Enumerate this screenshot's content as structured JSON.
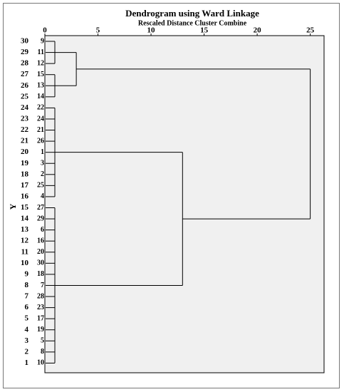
{
  "chart_data": {
    "type": "dendrogram",
    "title": "Dendrogram using Ward Linkage",
    "subtitle": "Rescaled Distance Cluster Combine",
    "ylabel": "Y",
    "xlim": [
      0,
      26.3
    ],
    "xticks": [
      0,
      5,
      10,
      15,
      20,
      25
    ],
    "row_labels": [
      "30",
      "29",
      "28",
      "27",
      "26",
      "25",
      "24",
      "23",
      "22",
      "21",
      "20",
      "19",
      "18",
      "17",
      "16",
      "15",
      "14",
      "13",
      "12",
      "11",
      "10",
      "9",
      "8",
      "7",
      "6",
      "5",
      "4",
      "3",
      "2",
      "1"
    ],
    "leaves": [
      "9",
      "11",
      "12",
      "15",
      "13",
      "14",
      "22",
      "24",
      "21",
      "26",
      "1",
      "3",
      "2",
      "25",
      "4",
      "27",
      "29",
      "6",
      "16",
      "20",
      "30",
      "18",
      "7",
      "28",
      "23",
      "17",
      "19",
      "5",
      "8",
      "10"
    ],
    "merges": [
      {
        "members": [
          0,
          1,
          2
        ],
        "height": 0.94
      },
      {
        "members": [
          3,
          4,
          5
        ],
        "height": 0.94
      },
      {
        "members": [
          30,
          31
        ],
        "height": 2.96
      },
      {
        "members": [
          6,
          7,
          8,
          9,
          10,
          11,
          12,
          13,
          14
        ],
        "height": 0.94
      },
      {
        "members": [
          15,
          16,
          17,
          18,
          19,
          20,
          21,
          22,
          23,
          24,
          25,
          26,
          27,
          28,
          29
        ],
        "height": 0.94
      },
      {
        "members": [
          33,
          34
        ],
        "height": 12.97
      },
      {
        "members": [
          32,
          35
        ],
        "height": 25
      }
    ],
    "line_color": "#000000",
    "background": "#f0f0f0"
  }
}
